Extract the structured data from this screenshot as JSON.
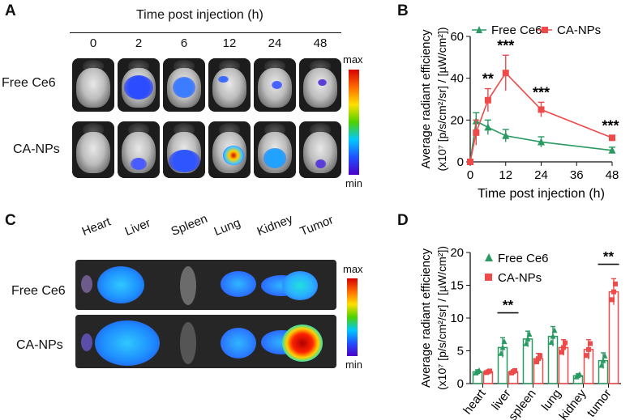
{
  "panel_a": {
    "label": "A",
    "header": "Time post injection (h)",
    "times": [
      "0",
      "2",
      "6",
      "12",
      "24",
      "48"
    ],
    "rows": [
      "Free Ce6",
      "CA-NPs"
    ],
    "scale_max": "max",
    "scale_min": "min"
  },
  "panel_c": {
    "label": "C",
    "organs": [
      "Heart",
      "Liver",
      "Spleen",
      "Lung",
      "Kidney",
      "Tumor"
    ],
    "rows": [
      "Free Ce6",
      "CA-NPs"
    ],
    "scale_max": "max",
    "scale_min": "min"
  },
  "chart_data": [
    {
      "panel": "B",
      "type": "line",
      "xlabel": "Time post injection (h)",
      "ylabel_line1": "Average radiant efficiency",
      "ylabel_line2": "(x10⁷ [p/s/cm²/sr] / [µW/cm²])",
      "xlim": [
        0,
        48
      ],
      "ylim": [
        0,
        60
      ],
      "xticks": [
        "0",
        "12",
        "24",
        "36",
        "48"
      ],
      "yticks": [
        "0",
        "20",
        "40",
        "60"
      ],
      "series": [
        {
          "name": "Free Ce6",
          "color": "#2a9a63",
          "marker": "triangle",
          "x": [
            0,
            2,
            6,
            12,
            24,
            48
          ],
          "y": [
            0,
            19.5,
            16.5,
            12.5,
            9.5,
            5.5
          ],
          "err": [
            0,
            4,
            3.5,
            3,
            2.5,
            1.5
          ]
        },
        {
          "name": "CA-NPs",
          "color": "#ef4a4a",
          "marker": "square",
          "x": [
            0,
            2,
            6,
            12,
            24,
            48
          ],
          "y": [
            0,
            14,
            29.5,
            42.5,
            25,
            11.5
          ],
          "err": [
            0,
            6,
            5.5,
            8.5,
            3.5,
            1
          ]
        }
      ],
      "annotations": [
        {
          "x": 6,
          "text": "**"
        },
        {
          "x": 12,
          "text": "***"
        },
        {
          "x": 24,
          "text": "***"
        },
        {
          "x": 48,
          "text": "***"
        }
      ]
    },
    {
      "panel": "D",
      "type": "bar",
      "ylabel_line1": "Average radiant efficiency",
      "ylabel_line2": "(x10⁷ [p/s/cm²/sr] / [µW/cm²])",
      "categories": [
        "heart",
        "liver",
        "spleen",
        "lung",
        "kidney",
        "tumor"
      ],
      "ylim": [
        0,
        20
      ],
      "yticks": [
        "0",
        "5",
        "10",
        "15",
        "20"
      ],
      "series": [
        {
          "name": "Free Ce6",
          "color": "#2a9a63",
          "values": [
            1.8,
            5.5,
            6.8,
            7.2,
            1.2,
            3.5
          ],
          "err": [
            0.3,
            1.5,
            1.2,
            1.5,
            0.3,
            1.2
          ]
        },
        {
          "name": "CA-NPs",
          "color": "#ef4a4a",
          "values": [
            1.8,
            1.8,
            3.8,
            5.5,
            5.2,
            14.0
          ],
          "err": [
            0.2,
            0.3,
            0.8,
            1.2,
            1.5,
            2.0
          ]
        }
      ],
      "annotations": [
        {
          "category": "liver",
          "text": "**"
        },
        {
          "category": "tumor",
          "text": "**"
        }
      ]
    }
  ]
}
